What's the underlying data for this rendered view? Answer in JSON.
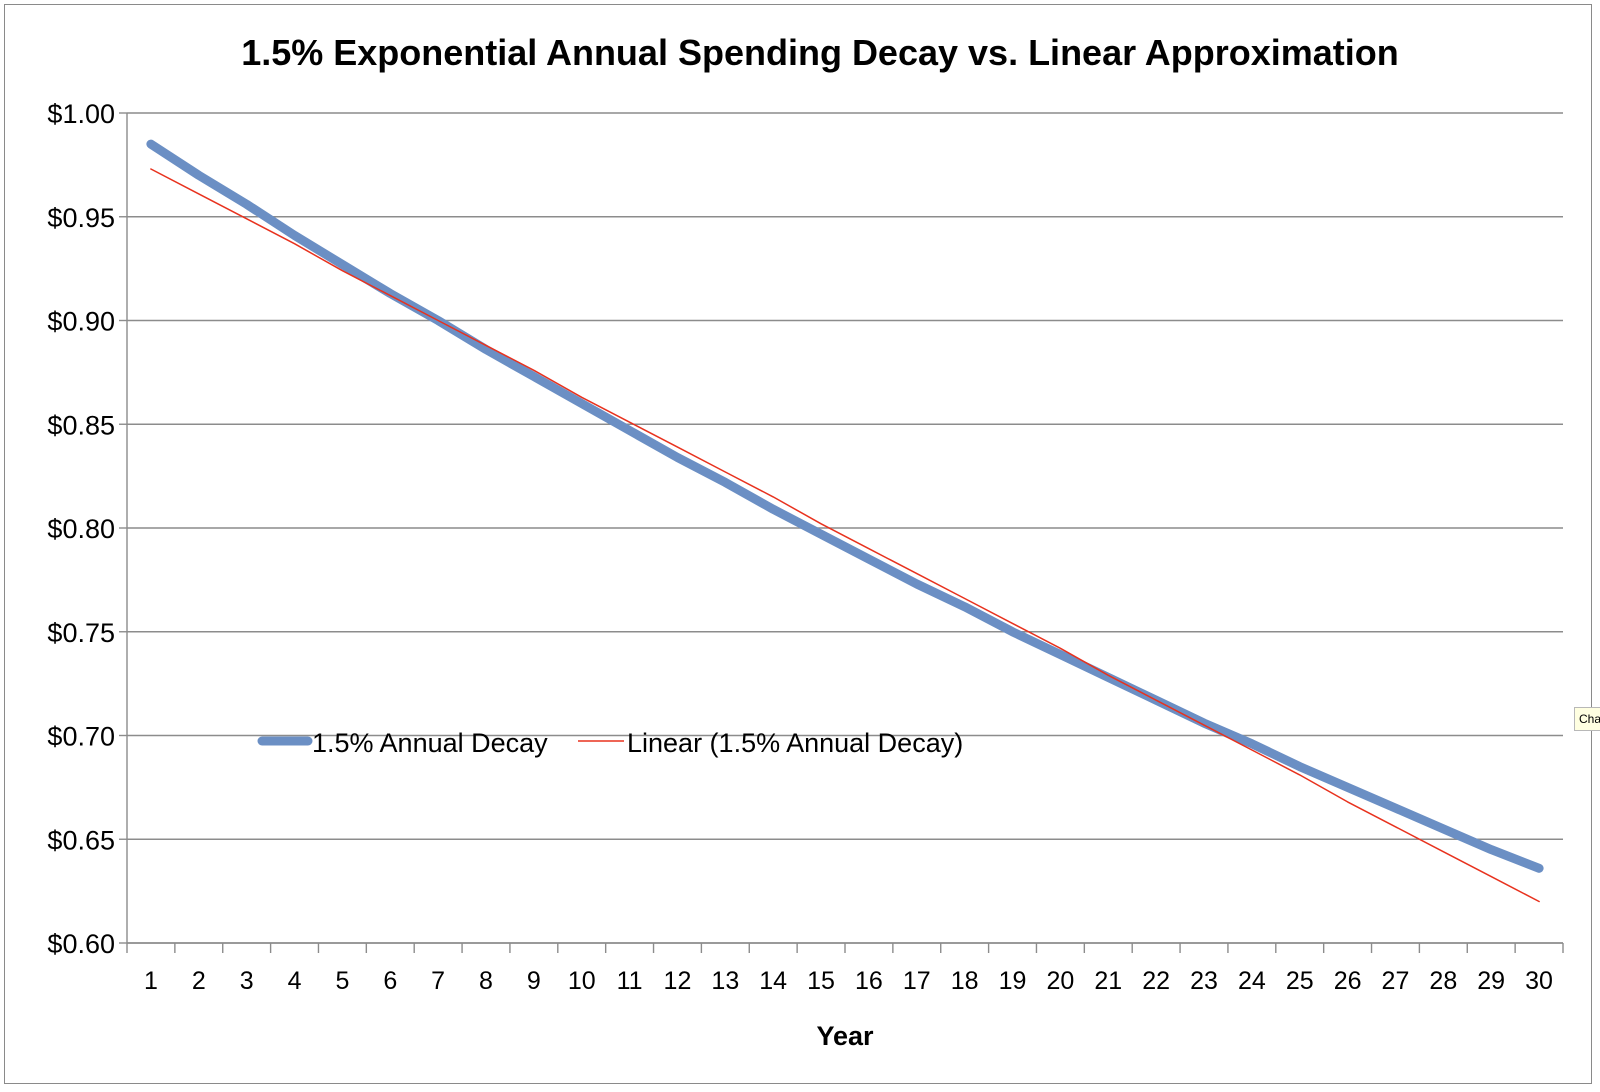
{
  "chart_data": {
    "type": "line",
    "title": "1.5% Exponential Annual Spending Decay vs. Linear Approximation",
    "xlabel": "Year",
    "ylabel": "",
    "x": [
      1,
      2,
      3,
      4,
      5,
      6,
      7,
      8,
      9,
      10,
      11,
      12,
      13,
      14,
      15,
      16,
      17,
      18,
      19,
      20,
      21,
      22,
      23,
      24,
      25,
      26,
      27,
      28,
      29,
      30
    ],
    "yticks": [
      "$0.60",
      "$0.65",
      "$0.70",
      "$0.75",
      "$0.80",
      "$0.85",
      "$0.90",
      "$0.95",
      "$1.00"
    ],
    "ytick_values": [
      0.6,
      0.65,
      0.7,
      0.75,
      0.8,
      0.85,
      0.9,
      0.95,
      1.0
    ],
    "ylim": [
      0.6,
      1.0
    ],
    "grid": true,
    "legend_position": "left-center",
    "series": [
      {
        "name": "1.5% Annual Decay",
        "color": "#6b8fc4",
        "style": "thick",
        "values": [
          0.985,
          0.97,
          0.956,
          0.941,
          0.927,
          0.913,
          0.9,
          0.886,
          0.873,
          0.86,
          0.847,
          0.834,
          0.822,
          0.809,
          0.797,
          0.785,
          0.773,
          0.762,
          0.75,
          0.739,
          0.728,
          0.717,
          0.706,
          0.696,
          0.685,
          0.675,
          0.665,
          0.655,
          0.645,
          0.636
        ]
      },
      {
        "name": "Linear (1.5% Annual Decay)",
        "color": "#e8321e",
        "style": "thin",
        "values": [
          0.973,
          0.961,
          0.949,
          0.937,
          0.924,
          0.912,
          0.9,
          0.888,
          0.876,
          0.863,
          0.851,
          0.839,
          0.827,
          0.815,
          0.802,
          0.79,
          0.778,
          0.766,
          0.754,
          0.742,
          0.729,
          0.717,
          0.705,
          0.693,
          0.681,
          0.668,
          0.656,
          0.644,
          0.632,
          0.62
        ]
      }
    ]
  },
  "tooltip": {
    "text": "Cha"
  }
}
